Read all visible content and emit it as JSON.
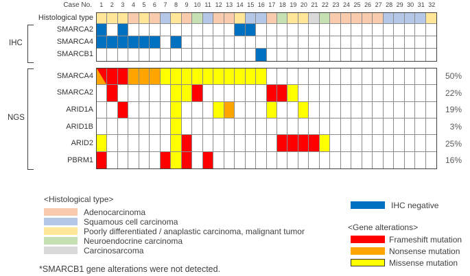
{
  "chart_data": {
    "type": "heatmap",
    "case_axis": {
      "label": "Case No.",
      "cases": [
        "1",
        "2",
        "3",
        "4",
        "5",
        "6",
        "7",
        "8",
        "9",
        "10",
        "11",
        "12",
        "13",
        "14",
        "15",
        "16",
        "17",
        "18",
        "19",
        "20",
        "21",
        "22",
        "23",
        "24",
        "25",
        "26",
        "27",
        "28",
        "29",
        "30",
        "31",
        "32"
      ]
    },
    "code_map": {
      "A": "adenocarcinoma",
      "S": "squamous_cell_carcinoma",
      "P": "poorly_differentiated",
      "N": "neuroendocrine",
      "C": "carcinosarcoma",
      "B": "ihc_negative",
      "F": "frameshift",
      "X": "nonsense",
      "M": "missense"
    },
    "histology_row": {
      "label": "Histological type",
      "values": [
        "P",
        "P",
        "P",
        "A",
        "P",
        "A",
        "S",
        "P",
        "A",
        "N",
        "S",
        "A",
        "A",
        "P",
        "S",
        "S",
        "A",
        "N",
        "P",
        "P",
        "C",
        "N",
        "A",
        "A",
        "A",
        "A",
        "A",
        "S",
        "S",
        "S",
        "S",
        "P"
      ]
    },
    "ihc_section": {
      "group_label": "IHC",
      "rows": [
        {
          "label": "SMARCA2",
          "values": [
            "B",
            "",
            "B",
            "",
            "",
            "",
            "",
            "",
            "",
            "",
            "",
            "",
            "",
            "B",
            "B",
            "",
            "",
            "",
            "",
            "",
            "",
            "",
            "",
            "",
            "",
            "",
            "",
            "",
            "",
            "",
            "",
            ""
          ]
        },
        {
          "label": "SMARCA4",
          "values": [
            "B",
            "B",
            "B",
            "B",
            "B",
            "B",
            "",
            "B",
            "",
            "",
            "",
            "",
            "",
            "",
            "",
            "",
            "",
            "",
            "",
            "",
            "",
            "",
            "",
            "",
            "",
            "",
            "",
            "",
            "",
            "",
            "",
            ""
          ]
        },
        {
          "label": "SMARCB1",
          "values": [
            "",
            "",
            "",
            "",
            "",
            "",
            "",
            "",
            "",
            "",
            "",
            "",
            "",
            "",
            "",
            "B",
            "",
            "",
            "",
            "",
            "",
            "",
            "",
            "",
            "",
            "",
            "",
            "",
            "",
            "",
            "",
            ""
          ]
        }
      ]
    },
    "ngs_section": {
      "group_label": "NGS",
      "rows": [
        {
          "label": "SMARCA4",
          "percent": "50%",
          "values": [
            "F/X",
            "F",
            "F",
            "X",
            "X",
            "X",
            "M",
            "M",
            "M",
            "M",
            "M",
            "M",
            "M",
            "M",
            "M",
            "M",
            "",
            "",
            "",
            "",
            "",
            "",
            "",
            "",
            "",
            "",
            "",
            "",
            "",
            "",
            "",
            ""
          ]
        },
        {
          "label": "SMARCA2",
          "percent": "22%",
          "values": [
            "",
            "F",
            "",
            "",
            "",
            "",
            "",
            "M",
            "M",
            "F",
            "",
            "",
            "",
            "",
            "",
            "",
            "F",
            "F",
            "M",
            "",
            "",
            "",
            "",
            "",
            "",
            "",
            "",
            "",
            "",
            "",
            "",
            ""
          ]
        },
        {
          "label": "ARID1A",
          "percent": "19%",
          "values": [
            "",
            "",
            "F",
            "",
            "",
            "",
            "",
            "M",
            "",
            "",
            "",
            "M",
            "X",
            "",
            "",
            "",
            "M",
            "",
            "",
            "M",
            "",
            "",
            "",
            "",
            "",
            "",
            "",
            "",
            "",
            "",
            "",
            ""
          ]
        },
        {
          "label": "ARID1B",
          "percent": "3%",
          "values": [
            "",
            "",
            "",
            "",
            "",
            "",
            "",
            "M",
            "",
            "",
            "",
            "",
            "",
            "",
            "",
            "",
            "",
            "",
            "",
            "",
            "",
            "",
            "",
            "",
            "",
            "",
            "",
            "",
            "",
            "",
            "",
            ""
          ]
        },
        {
          "label": "ARID2",
          "percent": "25%",
          "values": [
            "M",
            "",
            "",
            "",
            "",
            "",
            "",
            "M",
            "F",
            "",
            "",
            "",
            "",
            "",
            "",
            "",
            "",
            "F",
            "F",
            "F",
            "F",
            "M",
            "",
            "",
            "",
            "",
            "",
            "",
            "",
            "",
            "",
            ""
          ]
        },
        {
          "label": "PBRM1",
          "percent": "16%",
          "values": [
            "F",
            "",
            "",
            "",
            "",
            "",
            "F",
            "M",
            "F",
            "",
            "F",
            "",
            "",
            "",
            "",
            "",
            "",
            "",
            "",
            "",
            "",
            "",
            "",
            "",
            "",
            "",
            "",
            "",
            "",
            "",
            "",
            ""
          ]
        }
      ]
    }
  },
  "colors": {
    "adenocarcinoma": "#F8CBAD",
    "squamous_cell_carcinoma": "#B4C7E7",
    "poorly_differentiated": "#FFE699",
    "neuroendocrine": "#C6E0B4",
    "carcinosarcoma": "#D9D9D9",
    "ihc_negative": "#0070C0",
    "frameshift": "#FF0000",
    "nonsense": "#FFA500",
    "missense": "#FFFF00",
    "grid_line": "#8A8A8A",
    "grid_border": "#404040"
  },
  "legend_histology": {
    "title": "<Histological type>",
    "items": [
      {
        "label": "Adenocarcinoma",
        "color": "#F8CBAD"
      },
      {
        "label": "Squamous cell carcinoma",
        "color": "#B4C7E7"
      },
      {
        "label": "Poorly differentiated / anaplastic carcinoma, malignant tumor",
        "color": "#FFE699"
      },
      {
        "label": "Neuroendocrine carcinoma",
        "color": "#C6E0B4"
      },
      {
        "label": "Carcinosarcoma",
        "color": "#D9D9D9"
      }
    ]
  },
  "legend_ihc": {
    "label": "IHC negative",
    "color": "#0070C0"
  },
  "legend_alterations": {
    "title": "<Gene alterations>",
    "items": [
      {
        "label": "Frameshift mutation",
        "color": "#FF0000"
      },
      {
        "label": "Nonsense mutation",
        "color": "#FFA500"
      },
      {
        "label": "Missense mutation",
        "color": "#FFFF00"
      }
    ]
  },
  "footnote": "*SMARCB1 gene alterations were not detected."
}
